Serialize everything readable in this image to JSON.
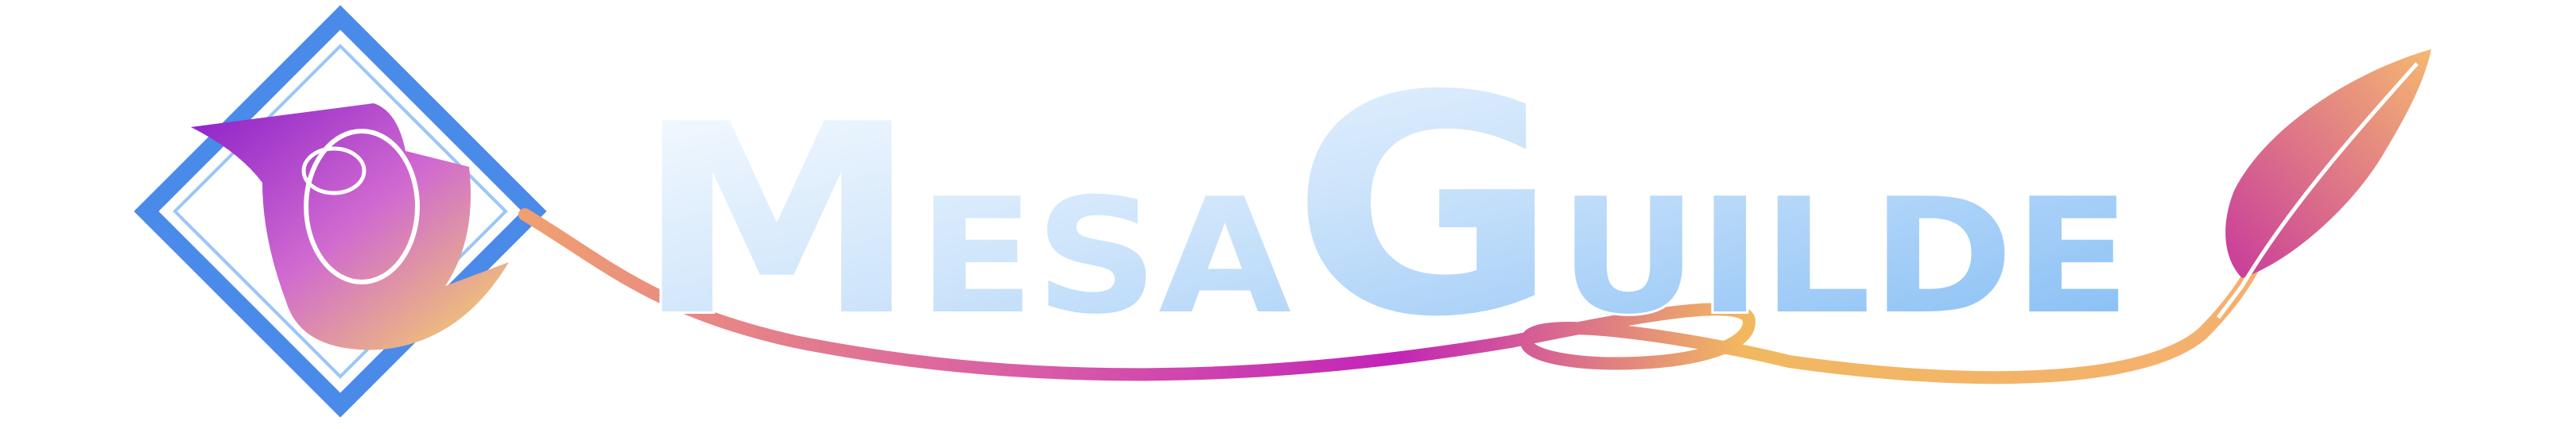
{
  "logo": {
    "parts": [
      "M",
      "ESA",
      "G",
      "UILDE"
    ]
  }
}
